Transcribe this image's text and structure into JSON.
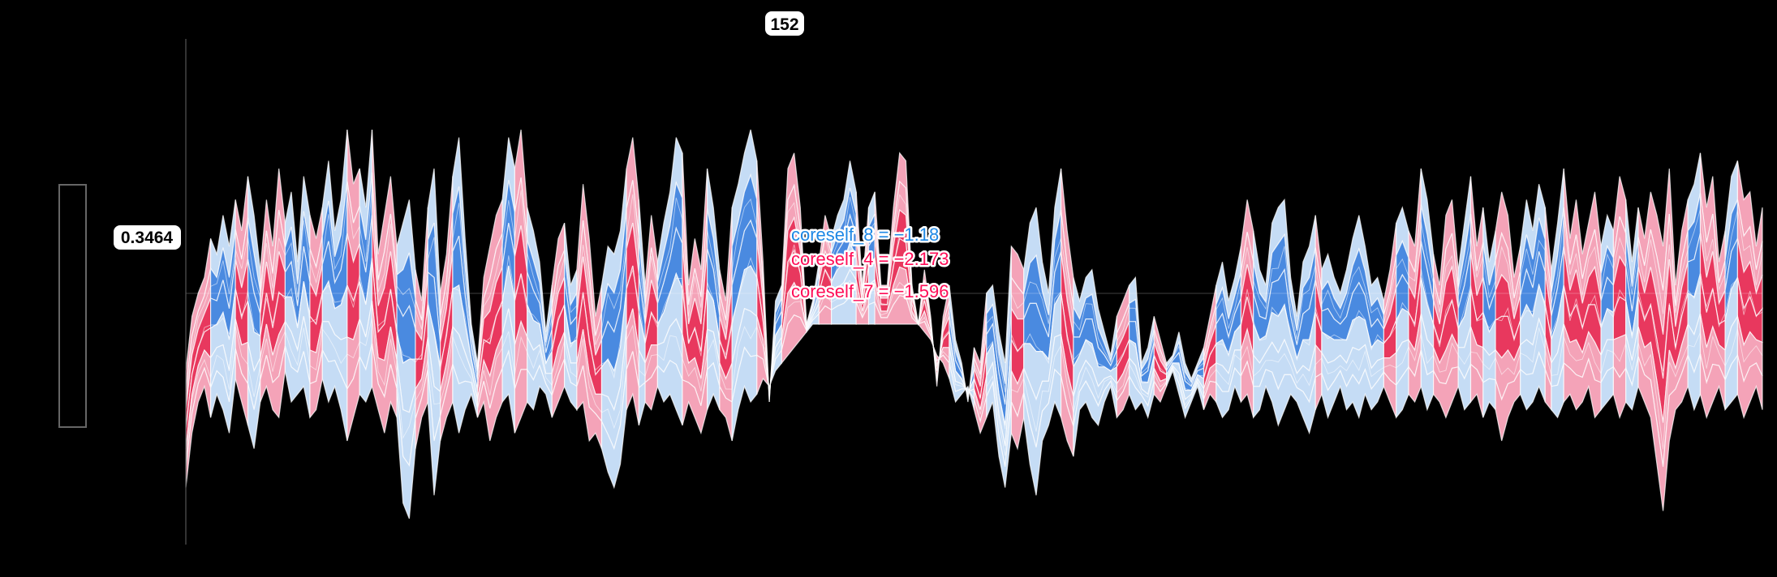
{
  "chart_data": {
    "type": "area",
    "description_free": true,
    "title": "",
    "xlabel": "",
    "ylabel": "",
    "top_label": "152",
    "base_value_label": "0.3464",
    "colors": {
      "positive": "#ff0d57",
      "positive_light": "#f4a3b8",
      "positive_mid": "#e8385e",
      "negative": "#1e88e5",
      "negative_light": "#c5dcf5",
      "negative_mid": "#4a8ae0",
      "label_bg": "#ffffff",
      "background": "#000000"
    },
    "annotations": [
      {
        "text": "coreself_8 = −1.18",
        "color": "#1e88e5"
      },
      {
        "text": "coreself_4 = −2.173",
        "color": "#ff0d57"
      },
      {
        "text": "coreself_7 = −1.596",
        "color": "#ff0d57"
      }
    ],
    "x_count": 260,
    "upper_envelope": [
      0.62,
      0.48,
      0.42,
      0.38,
      0.28,
      0.32,
      0.22,
      0.3,
      0.18,
      0.26,
      0.12,
      0.22,
      0.36,
      0.18,
      0.3,
      0.1,
      0.24,
      0.16,
      0.34,
      0.12,
      0.22,
      0.28,
      0.2,
      0.08,
      0.26,
      0.18,
      0.0,
      0.14,
      0.1,
      0.2,
      0.0,
      0.32,
      0.22,
      0.12,
      0.3,
      0.24,
      0.18,
      0.36,
      0.44,
      0.2,
      0.1,
      0.42,
      0.32,
      0.12,
      0.02,
      0.28,
      0.5,
      0.6,
      0.38,
      0.3,
      0.22,
      0.18,
      0.02,
      0.1,
      0.0,
      0.2,
      0.26,
      0.34,
      0.52,
      0.4,
      0.28,
      0.24,
      0.4,
      0.36,
      0.14,
      0.28,
      0.48,
      0.4,
      0.3,
      0.32,
      0.26,
      0.1,
      0.02,
      0.18,
      0.4,
      0.22,
      0.34,
      0.24,
      0.16,
      0.02,
      0.06,
      0.4,
      0.28,
      0.36,
      0.1,
      0.2,
      0.36,
      0.44,
      0.2,
      0.14,
      0.06,
      0.0,
      0.08,
      0.34,
      0.7,
      0.44,
      0.4,
      0.1,
      0.06,
      0.2,
      0.5,
      0.44,
      0.34,
      0.22,
      0.28,
      0.22,
      0.18,
      0.08,
      0.16,
      0.4,
      0.2,
      0.16,
      0.4,
      0.4,
      0.2,
      0.06,
      0.08,
      0.4,
      0.5,
      0.36,
      0.48,
      0.66,
      0.48,
      0.4,
      0.54,
      0.6,
      0.7,
      0.56,
      0.6,
      0.42,
      0.4,
      0.52,
      0.6,
      0.3,
      0.32,
      0.36,
      0.24,
      0.2,
      0.34,
      0.42,
      0.2,
      0.1,
      0.26,
      0.38,
      0.44,
      0.38,
      0.36,
      0.46,
      0.52,
      0.58,
      0.48,
      0.44,
      0.4,
      0.38,
      0.6,
      0.56,
      0.48,
      0.54,
      0.6,
      0.58,
      0.52,
      0.6,
      0.64,
      0.6,
      0.56,
      0.48,
      0.4,
      0.34,
      0.44,
      0.38,
      0.3,
      0.18,
      0.26,
      0.36,
      0.4,
      0.24,
      0.2,
      0.18,
      0.38,
      0.48,
      0.34,
      0.3,
      0.22,
      0.36,
      0.32,
      0.38,
      0.42,
      0.36,
      0.28,
      0.22,
      0.3,
      0.4,
      0.38,
      0.44,
      0.36,
      0.24,
      0.2,
      0.26,
      0.3,
      0.1,
      0.18,
      0.32,
      0.4,
      0.22,
      0.18,
      0.36,
      0.24,
      0.12,
      0.3,
      0.2,
      0.34,
      0.26,
      0.16,
      0.22,
      0.38,
      0.3,
      0.18,
      0.26,
      0.14,
      0.2,
      0.36,
      0.24,
      0.1,
      0.28,
      0.18,
      0.32,
      0.24,
      0.16,
      0.3,
      0.22,
      0.26,
      0.12,
      0.18,
      0.34,
      0.2,
      0.28,
      0.16,
      0.22,
      0.3,
      0.1,
      0.4,
      0.26,
      0.18,
      0.14,
      0.06,
      0.2,
      0.12,
      0.34,
      0.26,
      0.12,
      0.08,
      0.18,
      0.16,
      0.3,
      0.2,
      0.1,
      0.22,
      0.18,
      0.26,
      0.38
    ],
    "lower_envelope": [
      0.92,
      0.78,
      0.7,
      0.66,
      0.74,
      0.68,
      0.72,
      0.78,
      0.64,
      0.7,
      0.76,
      0.82,
      0.7,
      0.66,
      0.72,
      0.74,
      0.62,
      0.7,
      0.68,
      0.66,
      0.74,
      0.72,
      0.64,
      0.7,
      0.66,
      0.72,
      0.8,
      0.74,
      0.68,
      0.7,
      0.66,
      0.72,
      0.78,
      0.7,
      0.74,
      0.96,
      1.0,
      0.82,
      0.74,
      0.7,
      0.94,
      0.8,
      0.74,
      0.7,
      0.78,
      0.72,
      0.68,
      0.74,
      0.7,
      0.8,
      0.74,
      0.7,
      0.68,
      0.78,
      0.74,
      0.7,
      0.72,
      0.66,
      0.68,
      0.74,
      0.7,
      0.66,
      0.7,
      0.72,
      0.7,
      0.8,
      0.78,
      0.82,
      0.88,
      0.92,
      0.86,
      0.72,
      0.68,
      0.76,
      0.7,
      0.72,
      0.66,
      0.7,
      0.68,
      0.72,
      0.76,
      0.7,
      0.74,
      0.78,
      0.72,
      0.68,
      0.72,
      0.74,
      0.8,
      0.72,
      0.66,
      0.7,
      0.68,
      0.64,
      0.66,
      0.62,
      0.6,
      0.58,
      0.56,
      0.54,
      0.52,
      0.5,
      0.5,
      0.5,
      0.5,
      0.5,
      0.5,
      0.5,
      0.5,
      0.5,
      0.5,
      0.5,
      0.5,
      0.5,
      0.5,
      0.5,
      0.5,
      0.5,
      0.5,
      0.52,
      0.54,
      0.58,
      0.6,
      0.64,
      0.7,
      0.68,
      0.66,
      0.72,
      0.78,
      0.74,
      0.7,
      0.84,
      0.92,
      0.78,
      0.82,
      0.74,
      0.86,
      0.94,
      0.8,
      0.76,
      0.7,
      0.74,
      0.8,
      0.84,
      0.72,
      0.7,
      0.74,
      0.76,
      0.7,
      0.66,
      0.74,
      0.72,
      0.68,
      0.72,
      0.7,
      0.74,
      0.68,
      0.7,
      0.66,
      0.62,
      0.68,
      0.74,
      0.7,
      0.66,
      0.72,
      0.68,
      0.7,
      0.74,
      0.72,
      0.66,
      0.7,
      0.68,
      0.74,
      0.72,
      0.66,
      0.7,
      0.76,
      0.72,
      0.68,
      0.7,
      0.74,
      0.78,
      0.72,
      0.68,
      0.74,
      0.7,
      0.66,
      0.72,
      0.7,
      0.74,
      0.68,
      0.72,
      0.7,
      0.66,
      0.7,
      0.74,
      0.72,
      0.68,
      0.7,
      0.66,
      0.72,
      0.68,
      0.7,
      0.74,
      0.7,
      0.66,
      0.72,
      0.7,
      0.68,
      0.74,
      0.7,
      0.72,
      0.8,
      0.74,
      0.7,
      0.68,
      0.72,
      0.7,
      0.66,
      0.7,
      0.72,
      0.74,
      0.7,
      0.68,
      0.72,
      0.7,
      0.66,
      0.74,
      0.72,
      0.7,
      0.68,
      0.74,
      0.7,
      0.72,
      0.66,
      0.7,
      0.74,
      0.86,
      0.98,
      0.8,
      0.72,
      0.7,
      0.66,
      0.72,
      0.68,
      0.74,
      0.7,
      0.66,
      0.72,
      0.7,
      0.68,
      0.74,
      0.7,
      0.66,
      0.72
    ],
    "segment_signs": [
      1,
      1,
      0,
      0,
      1,
      0,
      1,
      1,
      0,
      0,
      1,
      0,
      0,
      1,
      0,
      1,
      1,
      0,
      0,
      1,
      0,
      1,
      0,
      0,
      1,
      1,
      0,
      1,
      0,
      0,
      1,
      0,
      1,
      1,
      0,
      0,
      1,
      0,
      1,
      0,
      0,
      1,
      1,
      0,
      1,
      0,
      0,
      1,
      0,
      1,
      1,
      0,
      1,
      0,
      0,
      1,
      0,
      1,
      1,
      1,
      1,
      1,
      1,
      0,
      0,
      1,
      0,
      0,
      1,
      0,
      0,
      0,
      1,
      0,
      0,
      0,
      0,
      1,
      0,
      0,
      1,
      0,
      0,
      0,
      1,
      0,
      0,
      1,
      0,
      0,
      0,
      0,
      0,
      1,
      0,
      0,
      0,
      0,
      0,
      1,
      0,
      1,
      0,
      1,
      1,
      0,
      1,
      0,
      1,
      1,
      0,
      0,
      1,
      0,
      1,
      1,
      1,
      0,
      1,
      0,
      1,
      1,
      1,
      1,
      0,
      1,
      1,
      0,
      1,
      1,
      0
    ]
  }
}
